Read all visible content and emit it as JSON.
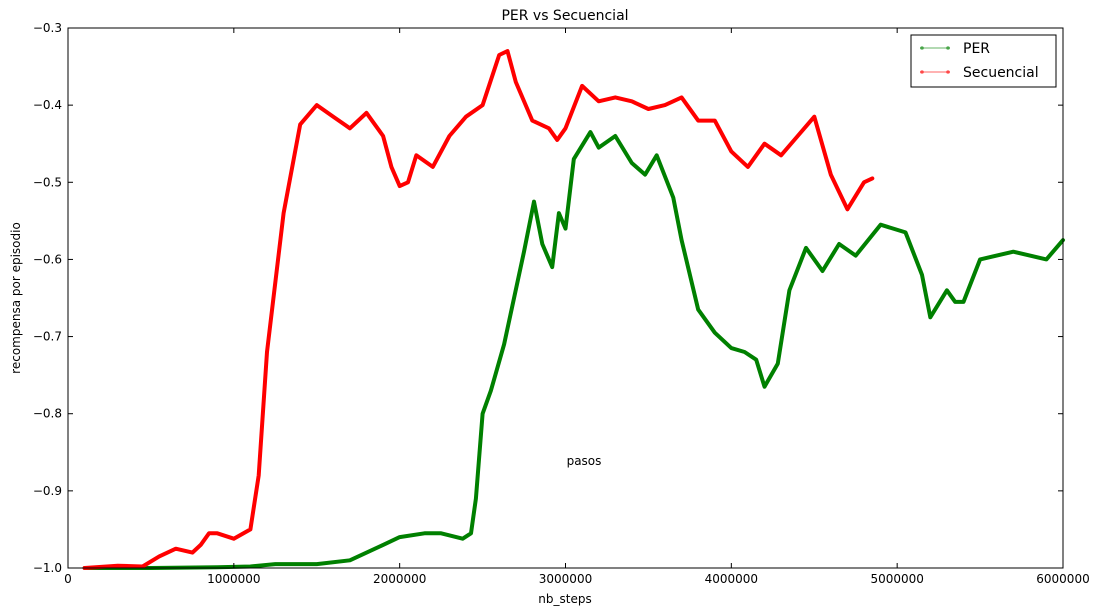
{
  "chart_data": {
    "type": "line",
    "title": "PER vs Secuencial",
    "xlabel": "nb_steps",
    "ylabel": "recompensa por episodio",
    "annotation": "pasos",
    "xlim": [
      0,
      6000000
    ],
    "ylim": [
      -1.0,
      -0.3
    ],
    "xticks": [
      0,
      1000000,
      2000000,
      3000000,
      4000000,
      5000000,
      6000000
    ],
    "xtick_labels": [
      "0",
      "1000000",
      "2000000",
      "3000000",
      "4000000",
      "5000000",
      "6000000"
    ],
    "yticks": [
      -1.0,
      -0.9,
      -0.8,
      -0.7,
      -0.6,
      -0.5,
      -0.4,
      -0.3
    ],
    "ytick_labels": [
      "−1.0",
      "−0.9",
      "−0.8",
      "−0.7",
      "−0.6",
      "−0.5",
      "−0.4",
      "−0.3"
    ],
    "grid": false,
    "legend_position": "top-right",
    "series": [
      {
        "name": "PER",
        "color": "#008000",
        "x": [
          100000,
          500000,
          900000,
          1100000,
          1250000,
          1500000,
          1700000,
          1900000,
          2000000,
          2150000,
          2250000,
          2380000,
          2430000,
          2460000,
          2500000,
          2550000,
          2630000,
          2750000,
          2810000,
          2860000,
          2920000,
          2960000,
          3000000,
          3050000,
          3150000,
          3200000,
          3300000,
          3400000,
          3480000,
          3550000,
          3650000,
          3700000,
          3800000,
          3900000,
          4000000,
          4080000,
          4150000,
          4200000,
          4280000,
          4350000,
          4450000,
          4550000,
          4650000,
          4750000,
          4900000,
          5050000,
          5150000,
          5200000,
          5300000,
          5350000,
          5400000,
          5500000,
          5700000,
          5900000,
          6000000
        ],
        "y": [
          -1.0,
          -1.0,
          -0.999,
          -0.998,
          -0.995,
          -0.995,
          -0.99,
          -0.97,
          -0.96,
          -0.955,
          -0.955,
          -0.962,
          -0.955,
          -0.91,
          -0.8,
          -0.77,
          -0.71,
          -0.59,
          -0.525,
          -0.58,
          -0.61,
          -0.54,
          -0.56,
          -0.47,
          -0.435,
          -0.455,
          -0.44,
          -0.475,
          -0.49,
          -0.465,
          -0.52,
          -0.575,
          -0.665,
          -0.695,
          -0.715,
          -0.72,
          -0.73,
          -0.765,
          -0.735,
          -0.64,
          -0.585,
          -0.615,
          -0.58,
          -0.595,
          -0.555,
          -0.565,
          -0.62,
          -0.675,
          -0.64,
          -0.655,
          -0.655,
          -0.6,
          -0.59,
          -0.6,
          -0.575
        ]
      },
      {
        "name": "Secuencial",
        "color": "#ff0000",
        "x": [
          100000,
          300000,
          450000,
          550000,
          650000,
          750000,
          800000,
          850000,
          900000,
          1000000,
          1100000,
          1150000,
          1200000,
          1300000,
          1400000,
          1500000,
          1600000,
          1700000,
          1800000,
          1900000,
          1950000,
          2000000,
          2050000,
          2100000,
          2200000,
          2300000,
          2400000,
          2500000,
          2600000,
          2650000,
          2700000,
          2800000,
          2900000,
          2950000,
          3000000,
          3100000,
          3200000,
          3300000,
          3400000,
          3500000,
          3600000,
          3700000,
          3800000,
          3900000,
          4000000,
          4100000,
          4200000,
          4300000,
          4400000,
          4500000,
          4600000,
          4700000,
          4800000,
          4850000
        ],
        "y": [
          -1.0,
          -0.997,
          -0.998,
          -0.985,
          -0.975,
          -0.98,
          -0.97,
          -0.955,
          -0.955,
          -0.962,
          -0.95,
          -0.88,
          -0.72,
          -0.54,
          -0.425,
          -0.4,
          -0.415,
          -0.43,
          -0.41,
          -0.44,
          -0.48,
          -0.505,
          -0.5,
          -0.465,
          -0.48,
          -0.44,
          -0.415,
          -0.4,
          -0.335,
          -0.33,
          -0.37,
          -0.42,
          -0.43,
          -0.445,
          -0.43,
          -0.375,
          -0.395,
          -0.39,
          -0.395,
          -0.405,
          -0.4,
          -0.39,
          -0.42,
          -0.42,
          -0.46,
          -0.48,
          -0.45,
          -0.465,
          -0.44,
          -0.415,
          -0.49,
          -0.535,
          -0.5,
          -0.495
        ]
      }
    ]
  }
}
